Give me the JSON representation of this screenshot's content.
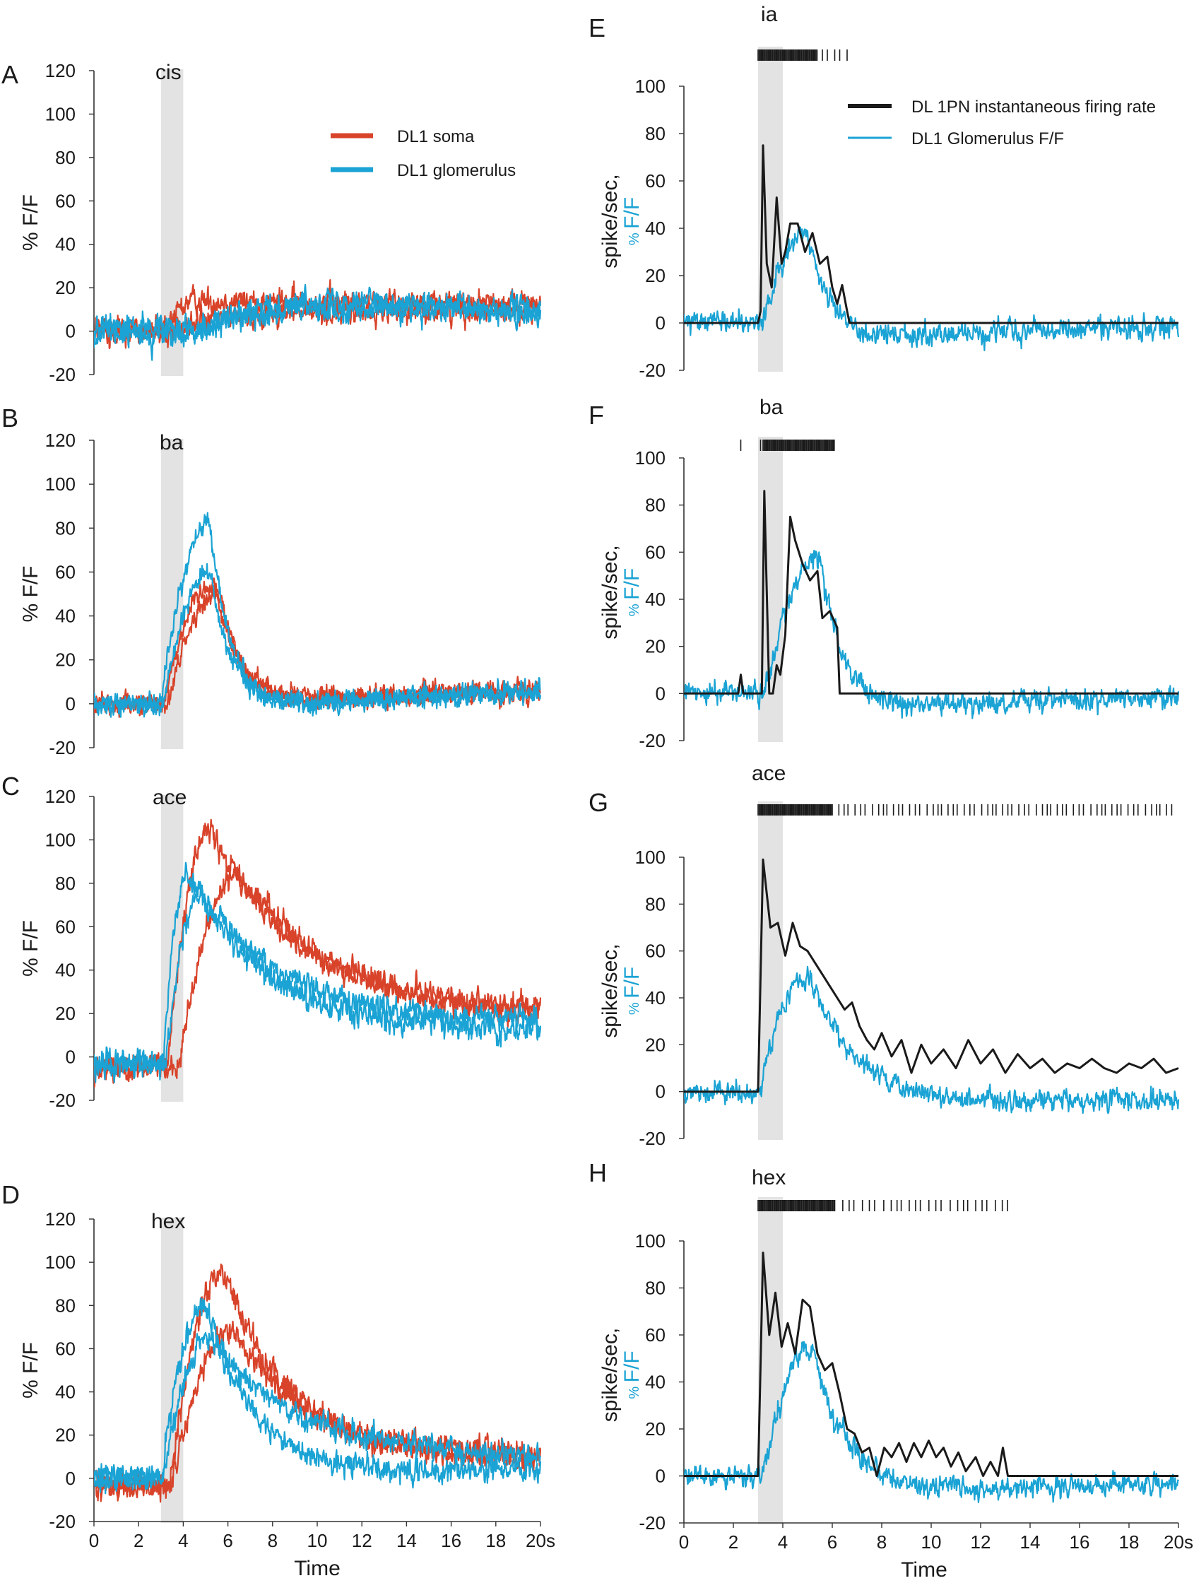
{
  "colors": {
    "soma": "#d8432a",
    "glomerulus": "#1aa3d4",
    "firing": "#1a1a1a",
    "stimulus_band": "#e3e3e3",
    "axis": "#333333"
  },
  "labels": {
    "left_ylabel_prefix": "%",
    "left_ylabel_suffix": "F/F",
    "right_ylabel_black": "spike/sec,",
    "right_ylabel_blue_prefix": "%",
    "right_ylabel_blue_suffix": "F/F",
    "xlabel": "Time"
  },
  "legends": {
    "left": [
      "DL1 soma",
      "DL1 glomerulus"
    ],
    "right": [
      "DL 1PN instantaneous firing rate",
      "DL1 Glomerulus   F/F"
    ]
  },
  "chart_data": [
    {
      "panel": "A",
      "odor": "cis",
      "type": "line",
      "column": "left",
      "ylim": [
        -20,
        120
      ],
      "yticks": [
        -20,
        0,
        20,
        40,
        60,
        80,
        100,
        120
      ],
      "xlim": [
        0,
        20
      ],
      "stimulus": [
        3,
        4
      ],
      "series": [
        {
          "name": "DL1 soma",
          "traces": [
            {
              "baseline": 0,
              "peak": 14,
              "riseStart": 3.2,
              "tPeak": 4.5,
              "tau": 25,
              "plateau": 12,
              "noise": 5
            },
            {
              "baseline": 0,
              "peak": 8,
              "riseStart": 3.5,
              "tPeak": 8,
              "tau": 30,
              "plateau": 15,
              "noise": 5
            }
          ]
        },
        {
          "name": "DL1 glomerulus",
          "traces": [
            {
              "baseline": -2,
              "peak": 10,
              "riseStart": 4,
              "tPeak": 10,
              "tau": 40,
              "plateau": 12,
              "noise": 5
            },
            {
              "baseline": 2,
              "peak": 15,
              "riseStart": 5,
              "tPeak": 12,
              "tau": 8,
              "plateau": 2,
              "noise": 5
            }
          ]
        }
      ]
    },
    {
      "panel": "B",
      "odor": "ba",
      "type": "line",
      "column": "left",
      "ylim": [
        -20,
        120
      ],
      "yticks": [
        -20,
        0,
        20,
        40,
        60,
        80,
        100,
        120
      ],
      "xlim": [
        0,
        20
      ],
      "stimulus": [
        3,
        4
      ],
      "series": [
        {
          "name": "DL1 soma",
          "traces": [
            {
              "baseline": 0,
              "peak": 55,
              "riseStart": 3.1,
              "tPeak": 5.4,
              "tau": 1.2,
              "undershoot": -6,
              "plateau": 8,
              "noise": 4
            },
            {
              "baseline": 0,
              "peak": 50,
              "riseStart": 3.3,
              "tPeak": 5.6,
              "tau": 1.2,
              "undershoot": -5,
              "plateau": 10,
              "noise": 4
            }
          ]
        },
        {
          "name": "DL1 glomerulus",
          "traces": [
            {
              "baseline": 0,
              "peak": 82,
              "riseStart": 3.0,
              "tPeak": 5.2,
              "tau": 1.0,
              "undershoot": -10,
              "plateau": 8,
              "noise": 4
            },
            {
              "baseline": 0,
              "peak": 60,
              "riseStart": 3.1,
              "tPeak": 5.2,
              "tau": 1.1,
              "undershoot": -8,
              "plateau": 7,
              "noise": 4
            }
          ]
        }
      ]
    },
    {
      "panel": "C",
      "odor": "ace",
      "type": "line",
      "column": "left",
      "ylim": [
        -20,
        120
      ],
      "yticks": [
        -20,
        0,
        20,
        40,
        60,
        80,
        100,
        120
      ],
      "xlim": [
        0,
        20
      ],
      "stimulus": [
        3,
        4
      ],
      "series": [
        {
          "name": "DL1 soma",
          "traces": [
            {
              "baseline": -5,
              "peak": 105,
              "riseStart": 3.3,
              "tPeak": 5.2,
              "tau": 4.0,
              "plateau": 20,
              "noise": 5
            },
            {
              "baseline": -5,
              "peak": 85,
              "riseStart": 3.8,
              "tPeak": 6.5,
              "tau": 4.5,
              "plateau": 18,
              "noise": 5
            }
          ]
        },
        {
          "name": "DL1 glomerulus",
          "traces": [
            {
              "baseline": -3,
              "peak": 85,
              "riseStart": 3.1,
              "tPeak": 4.2,
              "tau": 3.5,
              "plateau": 12,
              "noise": 5
            },
            {
              "baseline": -3,
              "peak": 75,
              "riseStart": 3.2,
              "tPeak": 4.8,
              "tau": 4.0,
              "plateau": 15,
              "noise": 5
            }
          ]
        }
      ]
    },
    {
      "panel": "D",
      "odor": "hex",
      "type": "line",
      "column": "left",
      "ylim": [
        -20,
        120
      ],
      "yticks": [
        -20,
        0,
        20,
        40,
        60,
        80,
        100,
        120
      ],
      "xlim": [
        0,
        20
      ],
      "stimulus": [
        3,
        4
      ],
      "series": [
        {
          "name": "DL1 soma",
          "traces": [
            {
              "baseline": -3,
              "peak": 95,
              "riseStart": 3.4,
              "tPeak": 5.8,
              "tau": 3.0,
              "plateau": 8,
              "noise": 5
            },
            {
              "baseline": -3,
              "peak": 68,
              "riseStart": 3.5,
              "tPeak": 6.2,
              "tau": 3.5,
              "plateau": 10,
              "noise": 5
            }
          ]
        },
        {
          "name": "DL1 glomerulus",
          "traces": [
            {
              "baseline": 0,
              "peak": 80,
              "riseStart": 3.0,
              "tPeak": 5.0,
              "tau": 2.5,
              "undershoot": -12,
              "plateau": 5,
              "noise": 5
            },
            {
              "baseline": 0,
              "peak": 65,
              "riseStart": 3.1,
              "tPeak": 5.2,
              "tau": 4.0,
              "plateau": 10,
              "noise": 5
            }
          ]
        }
      ]
    },
    {
      "panel": "E",
      "odor": "ia",
      "type": "line",
      "column": "right",
      "ylim": [
        -20,
        100
      ],
      "yticks": [
        -20,
        0,
        20,
        40,
        60,
        80,
        100
      ],
      "xlim": [
        0,
        20
      ],
      "stimulus": [
        3,
        4
      ],
      "firing_rate": [
        [
          0,
          0
        ],
        [
          3.0,
          0
        ],
        [
          3.1,
          5
        ],
        [
          3.2,
          75
        ],
        [
          3.35,
          25
        ],
        [
          3.55,
          15
        ],
        [
          3.75,
          53
        ],
        [
          3.95,
          25
        ],
        [
          4.1,
          30
        ],
        [
          4.3,
          42
        ],
        [
          4.6,
          42
        ],
        [
          4.9,
          30
        ],
        [
          5.2,
          38
        ],
        [
          5.5,
          25
        ],
        [
          5.8,
          28
        ],
        [
          6.0,
          15
        ],
        [
          6.2,
          8
        ],
        [
          6.4,
          16
        ],
        [
          6.6,
          5
        ],
        [
          6.7,
          0
        ],
        [
          20,
          0
        ]
      ],
      "glomerulus": {
        "baseline": 0,
        "peak": 38,
        "riseStart": 3.2,
        "tPeak": 5.0,
        "tau": 1.0,
        "undershoot": -10,
        "recovery": 8,
        "noise": 4
      },
      "spike_raster": {
        "dense": [
          3.0,
          5.4
        ],
        "sparse": [
          5.6,
          5.8,
          6.1,
          6.3,
          6.6
        ]
      }
    },
    {
      "panel": "F",
      "odor": "ba",
      "type": "line",
      "column": "right",
      "ylim": [
        -20,
        100
      ],
      "yticks": [
        -20,
        0,
        20,
        40,
        60,
        80,
        100
      ],
      "xlim": [
        0,
        20
      ],
      "stimulus": [
        3,
        4
      ],
      "firing_rate": [
        [
          0,
          0
        ],
        [
          2.2,
          0
        ],
        [
          2.3,
          8
        ],
        [
          2.4,
          0
        ],
        [
          3.15,
          0
        ],
        [
          3.25,
          86
        ],
        [
          3.45,
          0
        ],
        [
          3.6,
          0
        ],
        [
          3.75,
          12
        ],
        [
          3.9,
          8
        ],
        [
          4.1,
          25
        ],
        [
          4.3,
          75
        ],
        [
          4.5,
          65
        ],
        [
          4.8,
          55
        ],
        [
          5.1,
          48
        ],
        [
          5.4,
          52
        ],
        [
          5.6,
          32
        ],
        [
          5.9,
          35
        ],
        [
          6.2,
          28
        ],
        [
          6.3,
          0
        ],
        [
          20,
          0
        ]
      ],
      "glomerulus": {
        "baseline": 0,
        "peak": 58,
        "riseStart": 3.3,
        "tPeak": 5.5,
        "tau": 1.0,
        "undershoot": -10,
        "recovery": 8,
        "noise": 4
      },
      "spike_raster": {
        "dense": [
          3.2,
          6.1
        ],
        "sparse": [
          2.3,
          3.1
        ]
      }
    },
    {
      "panel": "G",
      "odor": "ace",
      "type": "line",
      "column": "right",
      "ylim": [
        -20,
        100
      ],
      "yticks": [
        -20,
        0,
        20,
        40,
        60,
        80,
        100
      ],
      "xlim": [
        0,
        20
      ],
      "stimulus": [
        3,
        4
      ],
      "firing_rate": [
        [
          0,
          0
        ],
        [
          3.0,
          0
        ],
        [
          3.2,
          99
        ],
        [
          3.5,
          70
        ],
        [
          3.8,
          72
        ],
        [
          4.1,
          58
        ],
        [
          4.4,
          72
        ],
        [
          4.7,
          62
        ],
        [
          5.0,
          60
        ],
        [
          5.3,
          55
        ],
        [
          5.6,
          50
        ],
        [
          5.9,
          45
        ],
        [
          6.2,
          40
        ],
        [
          6.5,
          35
        ],
        [
          6.8,
          38
        ],
        [
          7.1,
          28
        ],
        [
          7.4,
          22
        ],
        [
          7.7,
          18
        ],
        [
          8.0,
          25
        ],
        [
          8.4,
          15
        ],
        [
          8.8,
          22
        ],
        [
          9.2,
          8
        ],
        [
          9.6,
          20
        ],
        [
          10.0,
          12
        ],
        [
          10.5,
          18
        ],
        [
          11.0,
          10
        ],
        [
          11.5,
          22
        ],
        [
          12.0,
          12
        ],
        [
          12.5,
          18
        ],
        [
          13.0,
          8
        ],
        [
          13.5,
          16
        ],
        [
          14.0,
          10
        ],
        [
          14.5,
          14
        ],
        [
          15.0,
          8
        ],
        [
          15.5,
          12
        ],
        [
          16.0,
          10
        ],
        [
          16.5,
          14
        ],
        [
          17.0,
          10
        ],
        [
          17.5,
          8
        ],
        [
          18.0,
          12
        ],
        [
          18.5,
          10
        ],
        [
          19.0,
          14
        ],
        [
          19.5,
          8
        ],
        [
          20.0,
          10
        ]
      ],
      "glomerulus": {
        "baseline": 0,
        "peak": 50,
        "riseStart": 3.1,
        "tPeak": 5.0,
        "tau": 2.2,
        "undershoot": -12,
        "recovery": 10,
        "noise": 4
      },
      "spike_raster": {
        "dense": [
          3.0,
          6.0
        ],
        "sparse_from": 6.0,
        "sparse_to": 19.8,
        "spacing": 0.23
      }
    },
    {
      "panel": "H",
      "odor": "hex",
      "type": "line",
      "column": "right",
      "ylim": [
        -20,
        100
      ],
      "yticks": [
        -20,
        0,
        20,
        40,
        60,
        80,
        100
      ],
      "xlim": [
        0,
        20
      ],
      "stimulus": [
        3,
        4
      ],
      "firing_rate": [
        [
          0,
          0
        ],
        [
          3.0,
          0
        ],
        [
          3.2,
          95
        ],
        [
          3.45,
          60
        ],
        [
          3.7,
          78
        ],
        [
          3.95,
          55
        ],
        [
          4.2,
          65
        ],
        [
          4.5,
          52
        ],
        [
          4.8,
          75
        ],
        [
          5.1,
          72
        ],
        [
          5.4,
          52
        ],
        [
          5.7,
          45
        ],
        [
          6.0,
          48
        ],
        [
          6.3,
          35
        ],
        [
          6.6,
          20
        ],
        [
          6.9,
          18
        ],
        [
          7.2,
          10
        ],
        [
          7.5,
          12
        ],
        [
          7.8,
          0
        ],
        [
          8.1,
          12
        ],
        [
          8.4,
          8
        ],
        [
          8.7,
          14
        ],
        [
          9.0,
          6
        ],
        [
          9.3,
          14
        ],
        [
          9.6,
          8
        ],
        [
          9.9,
          15
        ],
        [
          10.2,
          8
        ],
        [
          10.5,
          12
        ],
        [
          10.8,
          4
        ],
        [
          11.1,
          10
        ],
        [
          11.4,
          2
        ],
        [
          11.8,
          8
        ],
        [
          12.1,
          0
        ],
        [
          12.4,
          6
        ],
        [
          12.7,
          0
        ],
        [
          12.9,
          12
        ],
        [
          13.1,
          0
        ],
        [
          20,
          0
        ]
      ],
      "glomerulus": {
        "baseline": 0,
        "peak": 55,
        "riseStart": 3.2,
        "tPeak": 5.2,
        "tau": 1.5,
        "undershoot": -12,
        "recovery": 10,
        "noise": 4
      },
      "spike_raster": {
        "dense": [
          3.0,
          6.1
        ],
        "sparse_from": 6.1,
        "sparse_to": 13.1,
        "spacing": 0.28
      }
    }
  ],
  "x_axis": {
    "ticks": [
      0,
      2,
      4,
      6,
      8,
      10,
      12,
      14,
      16,
      18,
      20
    ],
    "tick_labels": [
      "0",
      "2",
      "4",
      "6",
      "8",
      "10",
      "12",
      "14",
      "16",
      "18",
      "20s"
    ]
  }
}
